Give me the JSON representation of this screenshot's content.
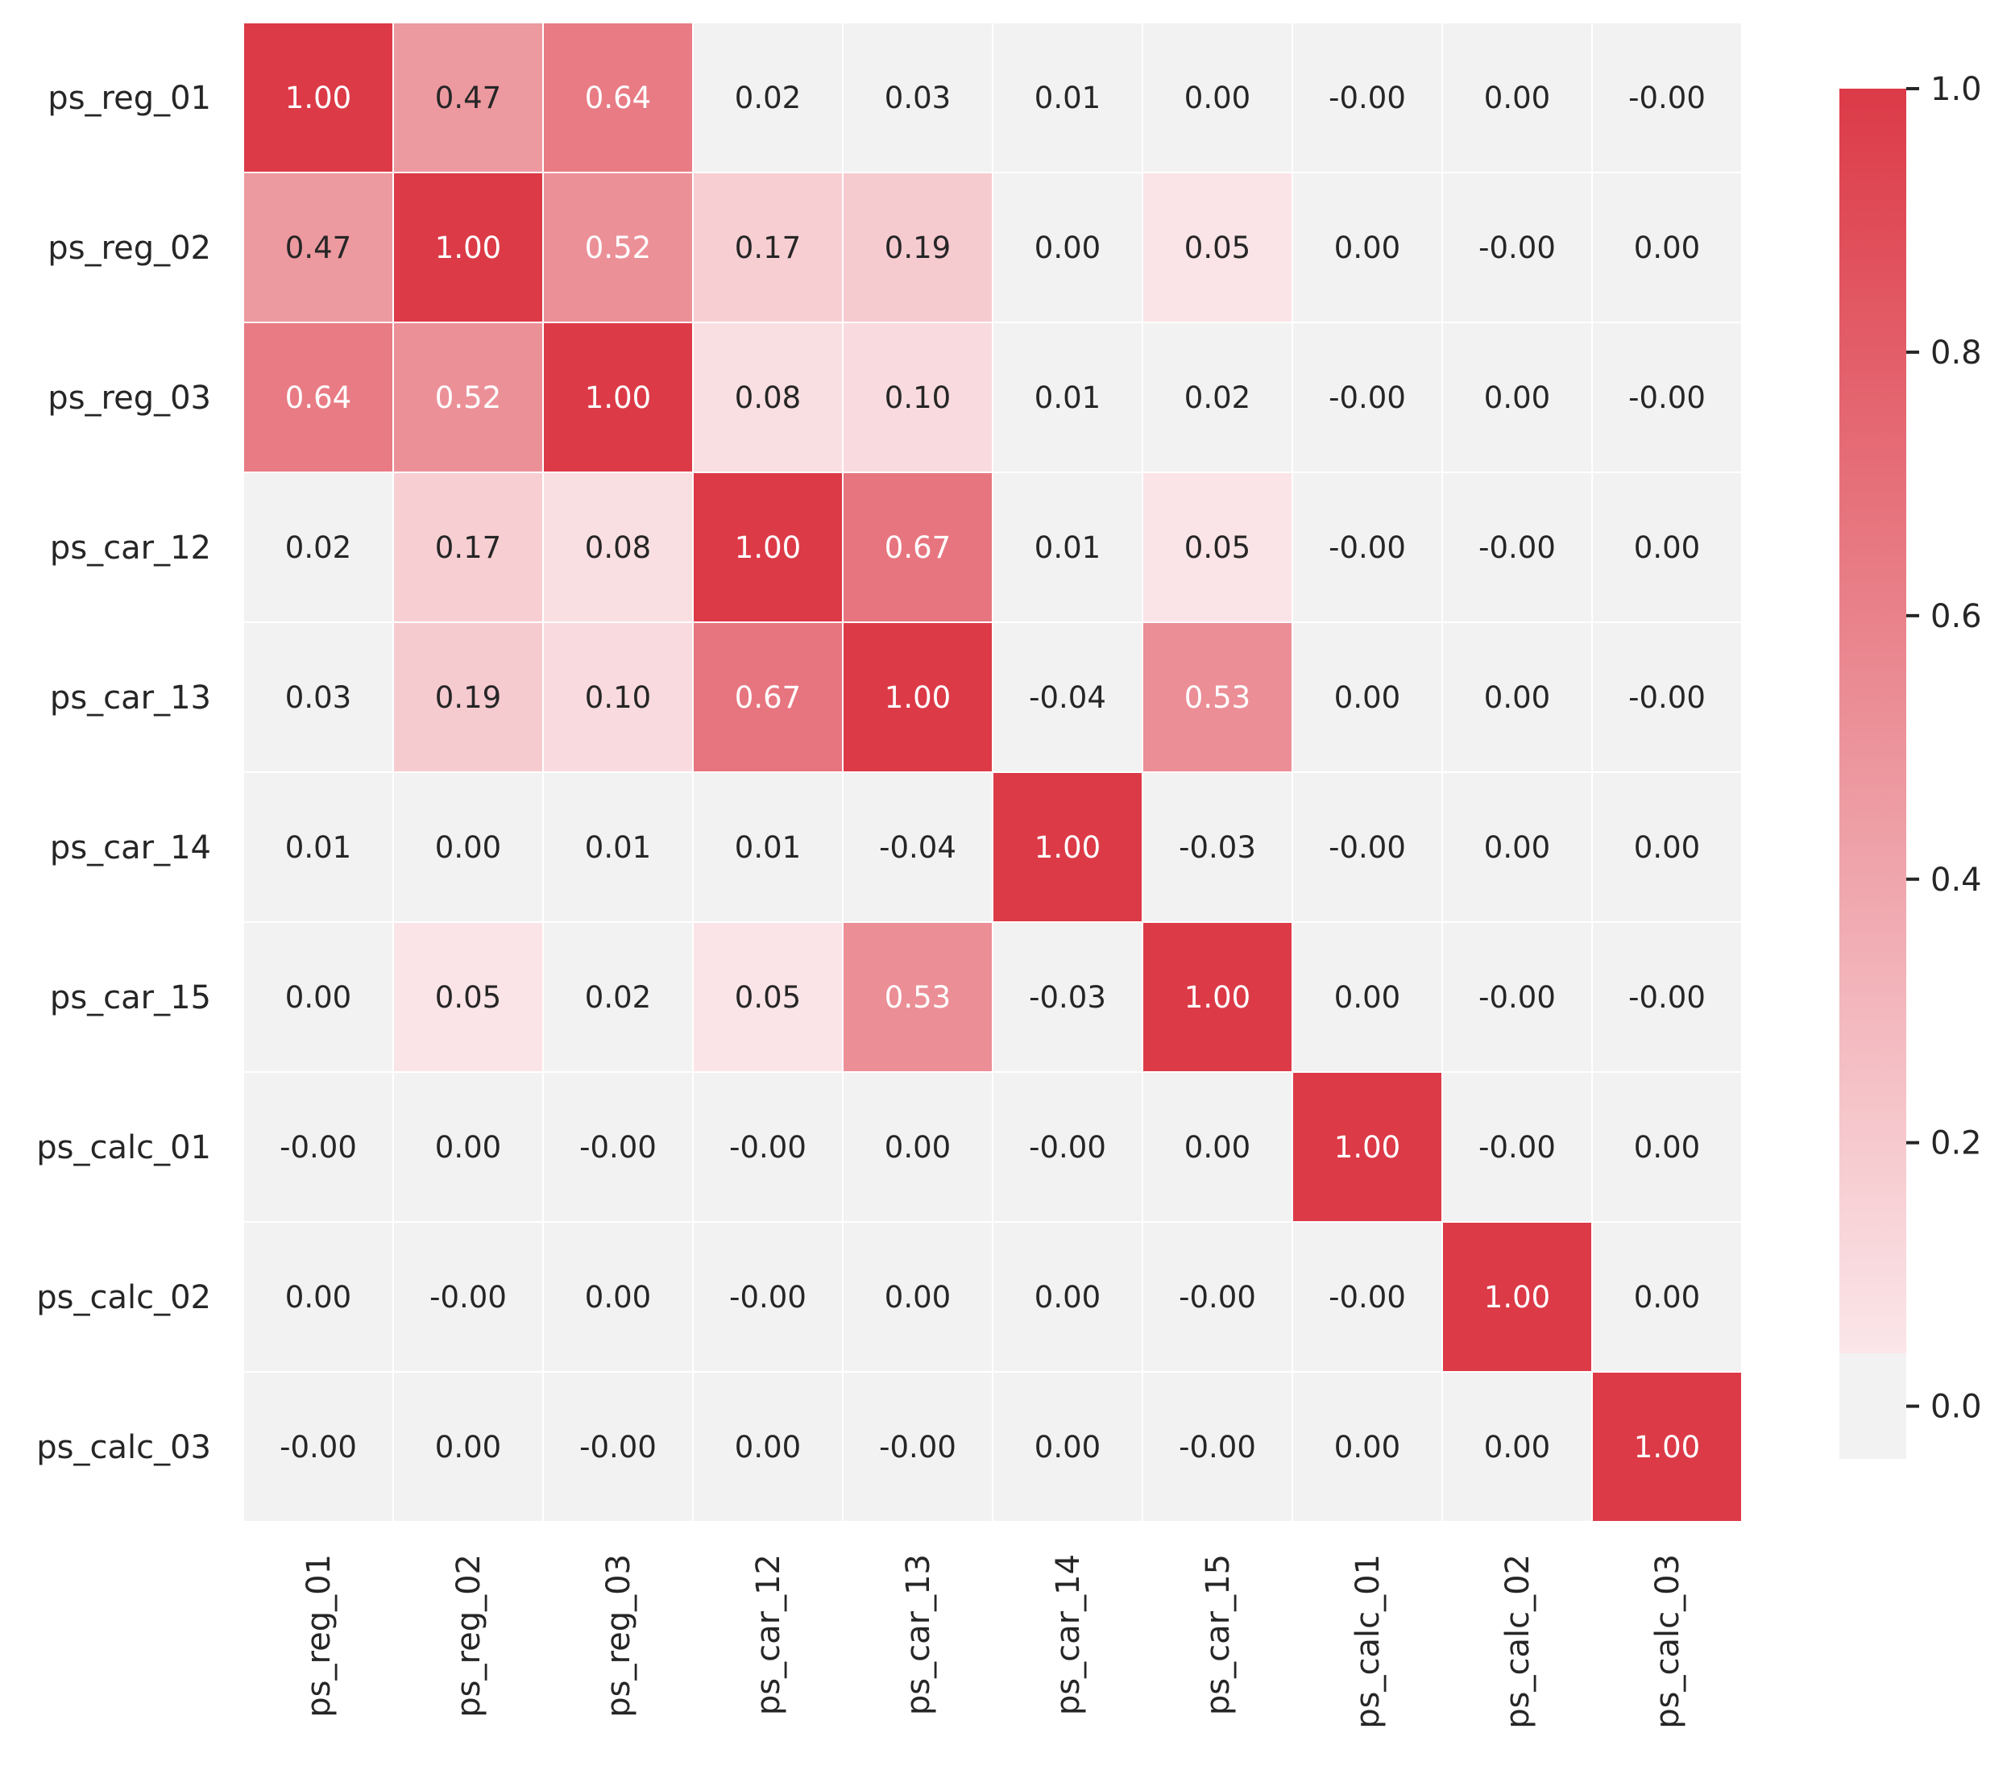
{
  "chart_data": {
    "type": "heatmap",
    "title": "",
    "xlabel": "",
    "ylabel": "",
    "rows": [
      "ps_reg_01",
      "ps_reg_02",
      "ps_reg_03",
      "ps_car_12",
      "ps_car_13",
      "ps_car_14",
      "ps_car_15",
      "ps_calc_01",
      "ps_calc_02",
      "ps_calc_03"
    ],
    "columns": [
      "ps_reg_01",
      "ps_reg_02",
      "ps_reg_03",
      "ps_car_12",
      "ps_car_13",
      "ps_car_14",
      "ps_car_15",
      "ps_calc_01",
      "ps_calc_02",
      "ps_calc_03"
    ],
    "values": [
      [
        1.0,
        0.47,
        0.64,
        0.02,
        0.03,
        0.01,
        0.0,
        -0.0,
        0.0,
        -0.0
      ],
      [
        0.47,
        1.0,
        0.52,
        0.17,
        0.19,
        0.0,
        0.05,
        0.0,
        -0.0,
        0.0
      ],
      [
        0.64,
        0.52,
        1.0,
        0.08,
        0.1,
        0.01,
        0.02,
        -0.0,
        0.0,
        -0.0
      ],
      [
        0.02,
        0.17,
        0.08,
        1.0,
        0.67,
        0.01,
        0.05,
        -0.0,
        -0.0,
        0.0
      ],
      [
        0.03,
        0.19,
        0.1,
        0.67,
        1.0,
        -0.04,
        0.53,
        0.0,
        0.0,
        -0.0
      ],
      [
        0.01,
        0.0,
        0.01,
        0.01,
        -0.04,
        1.0,
        -0.03,
        -0.0,
        0.0,
        0.0
      ],
      [
        0.0,
        0.05,
        0.02,
        0.05,
        0.53,
        -0.03,
        1.0,
        0.0,
        -0.0,
        -0.0
      ],
      [
        -0.0,
        0.0,
        -0.0,
        -0.0,
        0.0,
        -0.0,
        0.0,
        1.0,
        -0.0,
        0.0
      ],
      [
        0.0,
        -0.0,
        0.0,
        -0.0,
        0.0,
        0.0,
        -0.0,
        -0.0,
        1.0,
        0.0
      ],
      [
        -0.0,
        0.0,
        -0.0,
        0.0,
        -0.0,
        0.0,
        -0.0,
        0.0,
        0.0,
        1.0
      ]
    ],
    "labels": [
      [
        "1.00",
        "0.47",
        "0.64",
        "0.02",
        "0.03",
        "0.01",
        "0.00",
        "-0.00",
        "0.00",
        "-0.00"
      ],
      [
        "0.47",
        "1.00",
        "0.52",
        "0.17",
        "0.19",
        "0.00",
        "0.05",
        "0.00",
        "-0.00",
        "0.00"
      ],
      [
        "0.64",
        "0.52",
        "1.00",
        "0.08",
        "0.10",
        "0.01",
        "0.02",
        "-0.00",
        "0.00",
        "-0.00"
      ],
      [
        "0.02",
        "0.17",
        "0.08",
        "1.00",
        "0.67",
        "0.01",
        "0.05",
        "-0.00",
        "-0.00",
        "0.00"
      ],
      [
        "0.03",
        "0.19",
        "0.10",
        "0.67",
        "1.00",
        "-0.04",
        "0.53",
        "0.00",
        "0.00",
        "-0.00"
      ],
      [
        "0.01",
        "0.00",
        "0.01",
        "0.01",
        "-0.04",
        "1.00",
        "-0.03",
        "-0.00",
        "0.00",
        "0.00"
      ],
      [
        "0.00",
        "0.05",
        "0.02",
        "0.05",
        "0.53",
        "-0.03",
        "1.00",
        "0.00",
        "-0.00",
        "-0.00"
      ],
      [
        "-0.00",
        "0.00",
        "-0.00",
        "-0.00",
        "0.00",
        "-0.00",
        "0.00",
        "1.00",
        "-0.00",
        "0.00"
      ],
      [
        "0.00",
        "-0.00",
        "0.00",
        "-0.00",
        "0.00",
        "0.00",
        "-0.00",
        "-0.00",
        "1.00",
        "0.00"
      ],
      [
        "-0.00",
        "0.00",
        "-0.00",
        "0.00",
        "-0.00",
        "0.00",
        "-0.00",
        "0.00",
        "0.00",
        "1.00"
      ]
    ],
    "colorbar": {
      "range": [
        -0.04,
        1.0
      ],
      "ticks": [
        0.0,
        0.2,
        0.4,
        0.6,
        0.8,
        1.0
      ],
      "tick_labels": [
        "0.0",
        "0.2",
        "0.4",
        "0.6",
        "0.8",
        "1.0"
      ]
    },
    "colors": {
      "neutral": "#f2f2f2",
      "light_pink": "#fbe6e9",
      "max_red": "#dc3a47",
      "dark_text": "#262626",
      "light_text": "#ffffff",
      "grid_line": "#ffffff"
    },
    "grid": true,
    "legend": "right"
  }
}
